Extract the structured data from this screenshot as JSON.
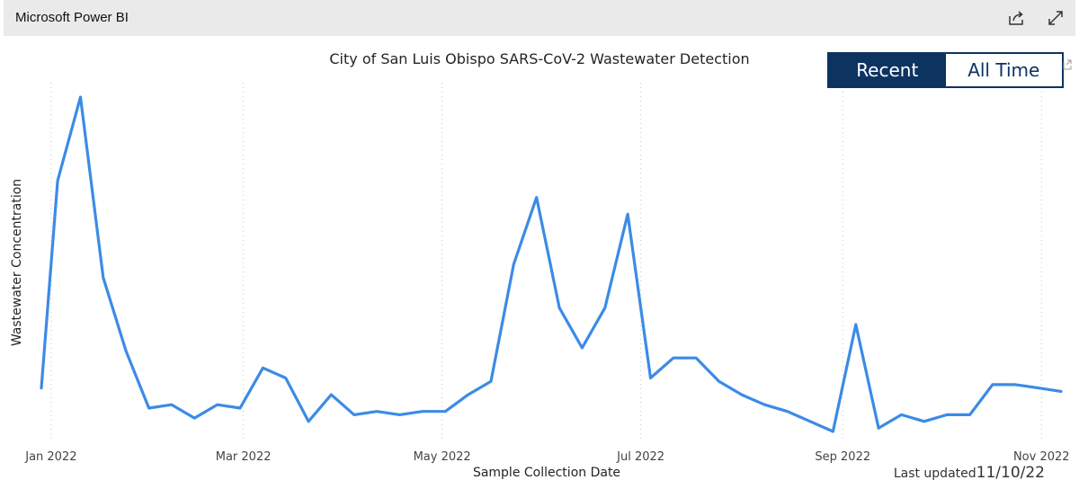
{
  "header": {
    "app_title": "Microsoft Power BI",
    "share_icon": "share-icon",
    "expand_icon": "expand-icon"
  },
  "toggle": {
    "recent_label": "Recent",
    "alltime_label": "All Time",
    "selected": "Recent"
  },
  "footer": {
    "updated_label": "Last updated",
    "updated_date": "11/10/22"
  },
  "colors": {
    "line": "#3c8be6",
    "toggle_active": "#0d3361"
  },
  "chart_data": {
    "type": "line",
    "title": "City of San Luis Obispo SARS-CoV-2 Wastewater Detection",
    "xlabel": "Sample Collection Date",
    "ylabel": "Wastewater Concentration",
    "x_ticks": [
      "2022-01-01",
      "2022-03-01",
      "2022-05-01",
      "2022-07-01",
      "2022-09-01",
      "2022-11-01"
    ],
    "x_tick_labels": [
      "Jan 2022",
      "Mar 2022",
      "May 2022",
      "Jul 2022",
      "Sep 2022",
      "Nov 2022"
    ],
    "xlim": [
      "2021-12-29",
      "2022-11-07"
    ],
    "ylim": [
      0,
      100
    ],
    "grid": "vertical dotted at ticks",
    "series": [
      {
        "x": [
          "2021-12-29",
          "2022-01-03",
          "2022-01-10",
          "2022-01-17",
          "2022-01-24",
          "2022-01-31",
          "2022-02-07",
          "2022-02-14",
          "2022-02-21",
          "2022-02-28",
          "2022-03-07",
          "2022-03-14",
          "2022-03-21",
          "2022-03-28",
          "2022-04-04",
          "2022-04-11",
          "2022-04-18",
          "2022-04-25",
          "2022-05-02",
          "2022-05-09",
          "2022-05-16",
          "2022-05-23",
          "2022-05-30",
          "2022-06-06",
          "2022-06-13",
          "2022-06-20",
          "2022-06-27",
          "2022-07-04",
          "2022-07-11",
          "2022-07-18",
          "2022-07-25",
          "2022-08-01",
          "2022-08-08",
          "2022-08-15",
          "2022-08-22",
          "2022-08-29",
          "2022-09-05",
          "2022-09-12",
          "2022-09-19",
          "2022-09-26",
          "2022-10-03",
          "2022-10-10",
          "2022-10-17",
          "2022-10-24",
          "2022-10-31",
          "2022-11-07"
        ],
        "values": [
          13,
          75,
          100,
          46,
          24,
          7,
          8,
          4,
          8,
          7,
          19,
          16,
          3,
          11,
          5,
          6,
          5,
          6,
          6,
          11,
          15,
          50,
          70,
          37,
          25,
          37,
          65,
          16,
          22,
          22,
          15,
          11,
          8,
          6,
          3,
          0,
          32,
          1,
          5,
          3,
          5,
          5,
          14,
          14,
          13,
          12
        ]
      }
    ]
  }
}
